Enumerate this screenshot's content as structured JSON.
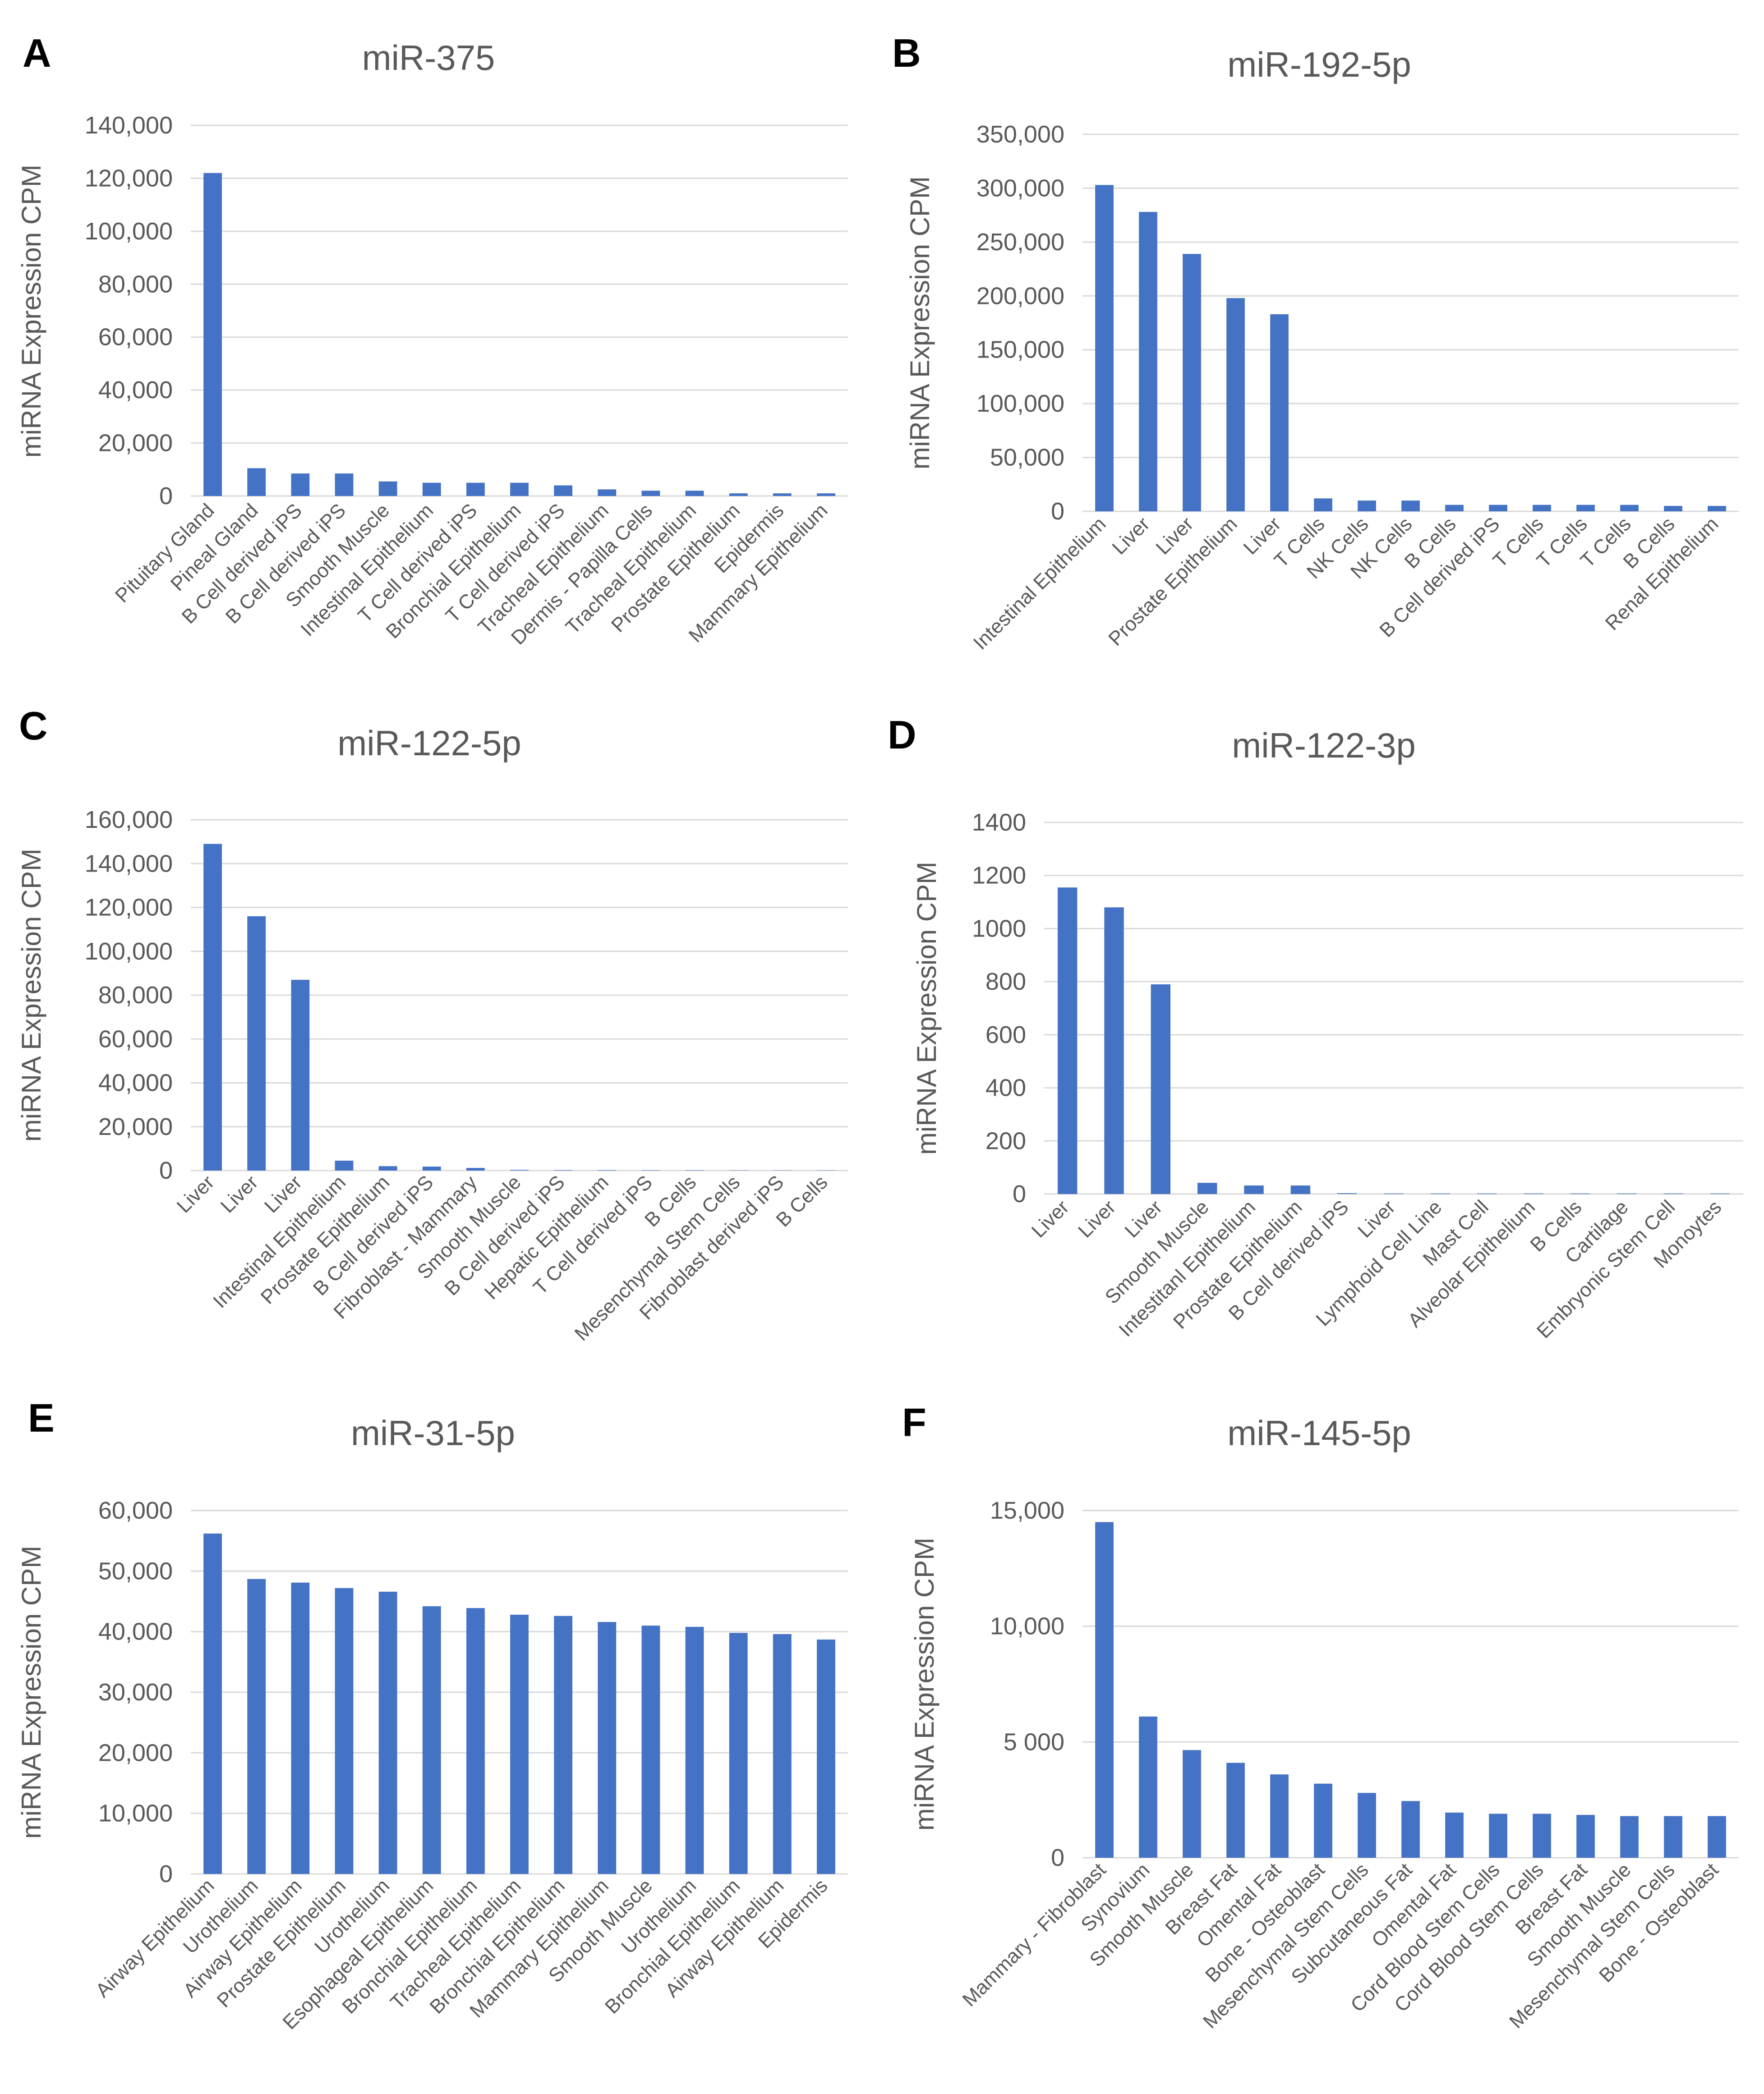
{
  "figure": {
    "colors": {
      "bar": "#4472c4",
      "grid": "#d9d9d9",
      "text": "#595959"
    }
  },
  "chart_data": [
    {
      "panel": "A",
      "type": "bar",
      "title": "miR-375",
      "ylabel": "miRNA Expression CPM",
      "ylim": [
        0,
        140000
      ],
      "yticks": [
        "0",
        "20,000",
        "40,000",
        "60,000",
        "80,000",
        "100,000",
        "120,000",
        "140,000"
      ],
      "categories": [
        "Pituitary Gland",
        "Pineal Gland",
        "B Cell derived iPS",
        "B Cell derived iPS",
        "Smooth Muscle",
        "Intestinal Epithelium",
        "T Cell derived iPS",
        "Bronchial Epithelium",
        "T Cell derived iPS",
        "Tracheal Epithelium",
        "Dermis - Papilla Cells",
        "Tracheal Epithelium",
        "Prostate Epithelium",
        "Epidermis",
        "Mammary Epithelium"
      ],
      "values": [
        122000,
        10500,
        8500,
        8500,
        5500,
        5000,
        5000,
        5000,
        4000,
        2500,
        2000,
        2000,
        1000,
        1000,
        1000
      ],
      "grid": true
    },
    {
      "panel": "B",
      "type": "bar",
      "title": "miR-192-5p",
      "ylabel": "miRNA Expression CPM",
      "ylim": [
        0,
        350000
      ],
      "yticks": [
        "0",
        "50,000",
        "100,000",
        "150,000",
        "200,000",
        "250,000",
        "300,000",
        "350,000"
      ],
      "categories": [
        "Intestinal Epithelium",
        "Liver",
        "Liver",
        "Prostate Epithelium",
        "Liver",
        "T Cells",
        "NK Cells",
        "NK Cells",
        "B Cells",
        "B Cell derived iPS",
        "T Cells",
        "T Cells",
        "T Cells",
        "B Cells",
        "Renal Epithelium"
      ],
      "values": [
        303000,
        278000,
        239000,
        198000,
        183000,
        12000,
        10000,
        10000,
        6000,
        6000,
        6000,
        6000,
        6000,
        5000,
        5000
      ],
      "grid": true
    },
    {
      "panel": "C",
      "type": "bar",
      "title": "miR-122-5p",
      "ylabel": "miRNA Expression CPM",
      "ylim": [
        0,
        160000
      ],
      "yticks": [
        "0",
        "20,000",
        "40,000",
        "60,000",
        "80,000",
        "100,000",
        "120,000",
        "140,000",
        "160,000"
      ],
      "categories": [
        "Liver",
        "Liver",
        "Liver",
        "Intestinal Epithelium",
        "Prostate Epithelium",
        "B Cell derived iPS",
        "Fibroblast - Mammary",
        "Smooth Muscle",
        "B Cell derived iPS",
        "Hepatic Epithelium",
        "T Cell derived iPS",
        "B Cells",
        "Mesenchymal Stem Cells",
        "Fibroblast derived iPS",
        "B Cells"
      ],
      "values": [
        149000,
        116000,
        87000,
        4500,
        2000,
        1800,
        1200,
        300,
        200,
        200,
        150,
        150,
        100,
        100,
        100
      ],
      "grid": true
    },
    {
      "panel": "D",
      "type": "bar",
      "title": "miR-122-3p",
      "ylabel": "miRNA Expression CPM",
      "ylim": [
        0,
        1400
      ],
      "yticks": [
        "0",
        "200",
        "400",
        "600",
        "800",
        "1000",
        "1200",
        "1400"
      ],
      "categories": [
        "Liver",
        "Liver",
        "Liver",
        "Smooth Muscle",
        "Intestitanl Epithelium",
        "Prostate Epithelium",
        "B Cell derived iPS",
        "Liver",
        "Lymphoid Cell Line",
        "Mast Cell",
        "Alveolar Epithelium",
        "B Cells",
        "Cartilage",
        "Embryonic Stem Cell",
        "Monoytes"
      ],
      "values": [
        1155,
        1080,
        790,
        42,
        32,
        32,
        3,
        2,
        2,
        2,
        2,
        2,
        2,
        2,
        2
      ],
      "grid": true
    },
    {
      "panel": "E",
      "type": "bar",
      "title": "miR-31-5p",
      "ylabel": "miRNA Expression CPM",
      "ylim": [
        0,
        60000
      ],
      "yticks": [
        "0",
        "10,000",
        "20,000",
        "30,000",
        "40,000",
        "50,000",
        "60,000"
      ],
      "categories": [
        "Airway Epithelium",
        "Urothelium",
        "Airway Epithelium",
        "Prostate Epithelium",
        "Urothelium",
        "Esophageal Epithelium",
        "Bronchial Epithelium",
        "Tracheal Epithelium",
        "Bronchial Epithelium",
        "Mammary Epithelium",
        "Smooth Muscle",
        "Urothelium",
        "Bronchial Epithelium",
        "Airway Epithelium",
        "Epidermis"
      ],
      "values": [
        56200,
        48700,
        48100,
        47200,
        46600,
        44200,
        43900,
        42800,
        42600,
        41600,
        41000,
        40800,
        39800,
        39600,
        38700
      ],
      "grid": true
    },
    {
      "panel": "F",
      "type": "bar",
      "title": "miR-145-5p",
      "ylabel": "miRNA Expression CPM",
      "ylim": [
        0,
        15000
      ],
      "yticks": [
        "0",
        "5 000",
        "10,000",
        "15,000"
      ],
      "ytick_values": [
        0,
        5000,
        10000,
        15000
      ],
      "categories": [
        "Mammary - Fibroblast",
        "Synovium",
        "Smooth Muscle",
        "Breast Fat",
        "Omental Fat",
        "Bone - Osteoblast",
        "Mesenchymal Stem Cells",
        "Subcutaneous Fat",
        "Omental Fat",
        "Cord Blood Stem Cells",
        "Cord Blood Stem Cells",
        "Breast Fat",
        "Smooth Muscle",
        "Mesenchymal Stem Cells",
        "Bone - Osteoblast"
      ],
      "values": [
        14500,
        6100,
        4650,
        4100,
        3600,
        3200,
        2800,
        2450,
        1950,
        1900,
        1900,
        1850,
        1800,
        1800,
        1800
      ],
      "grid": true
    }
  ]
}
